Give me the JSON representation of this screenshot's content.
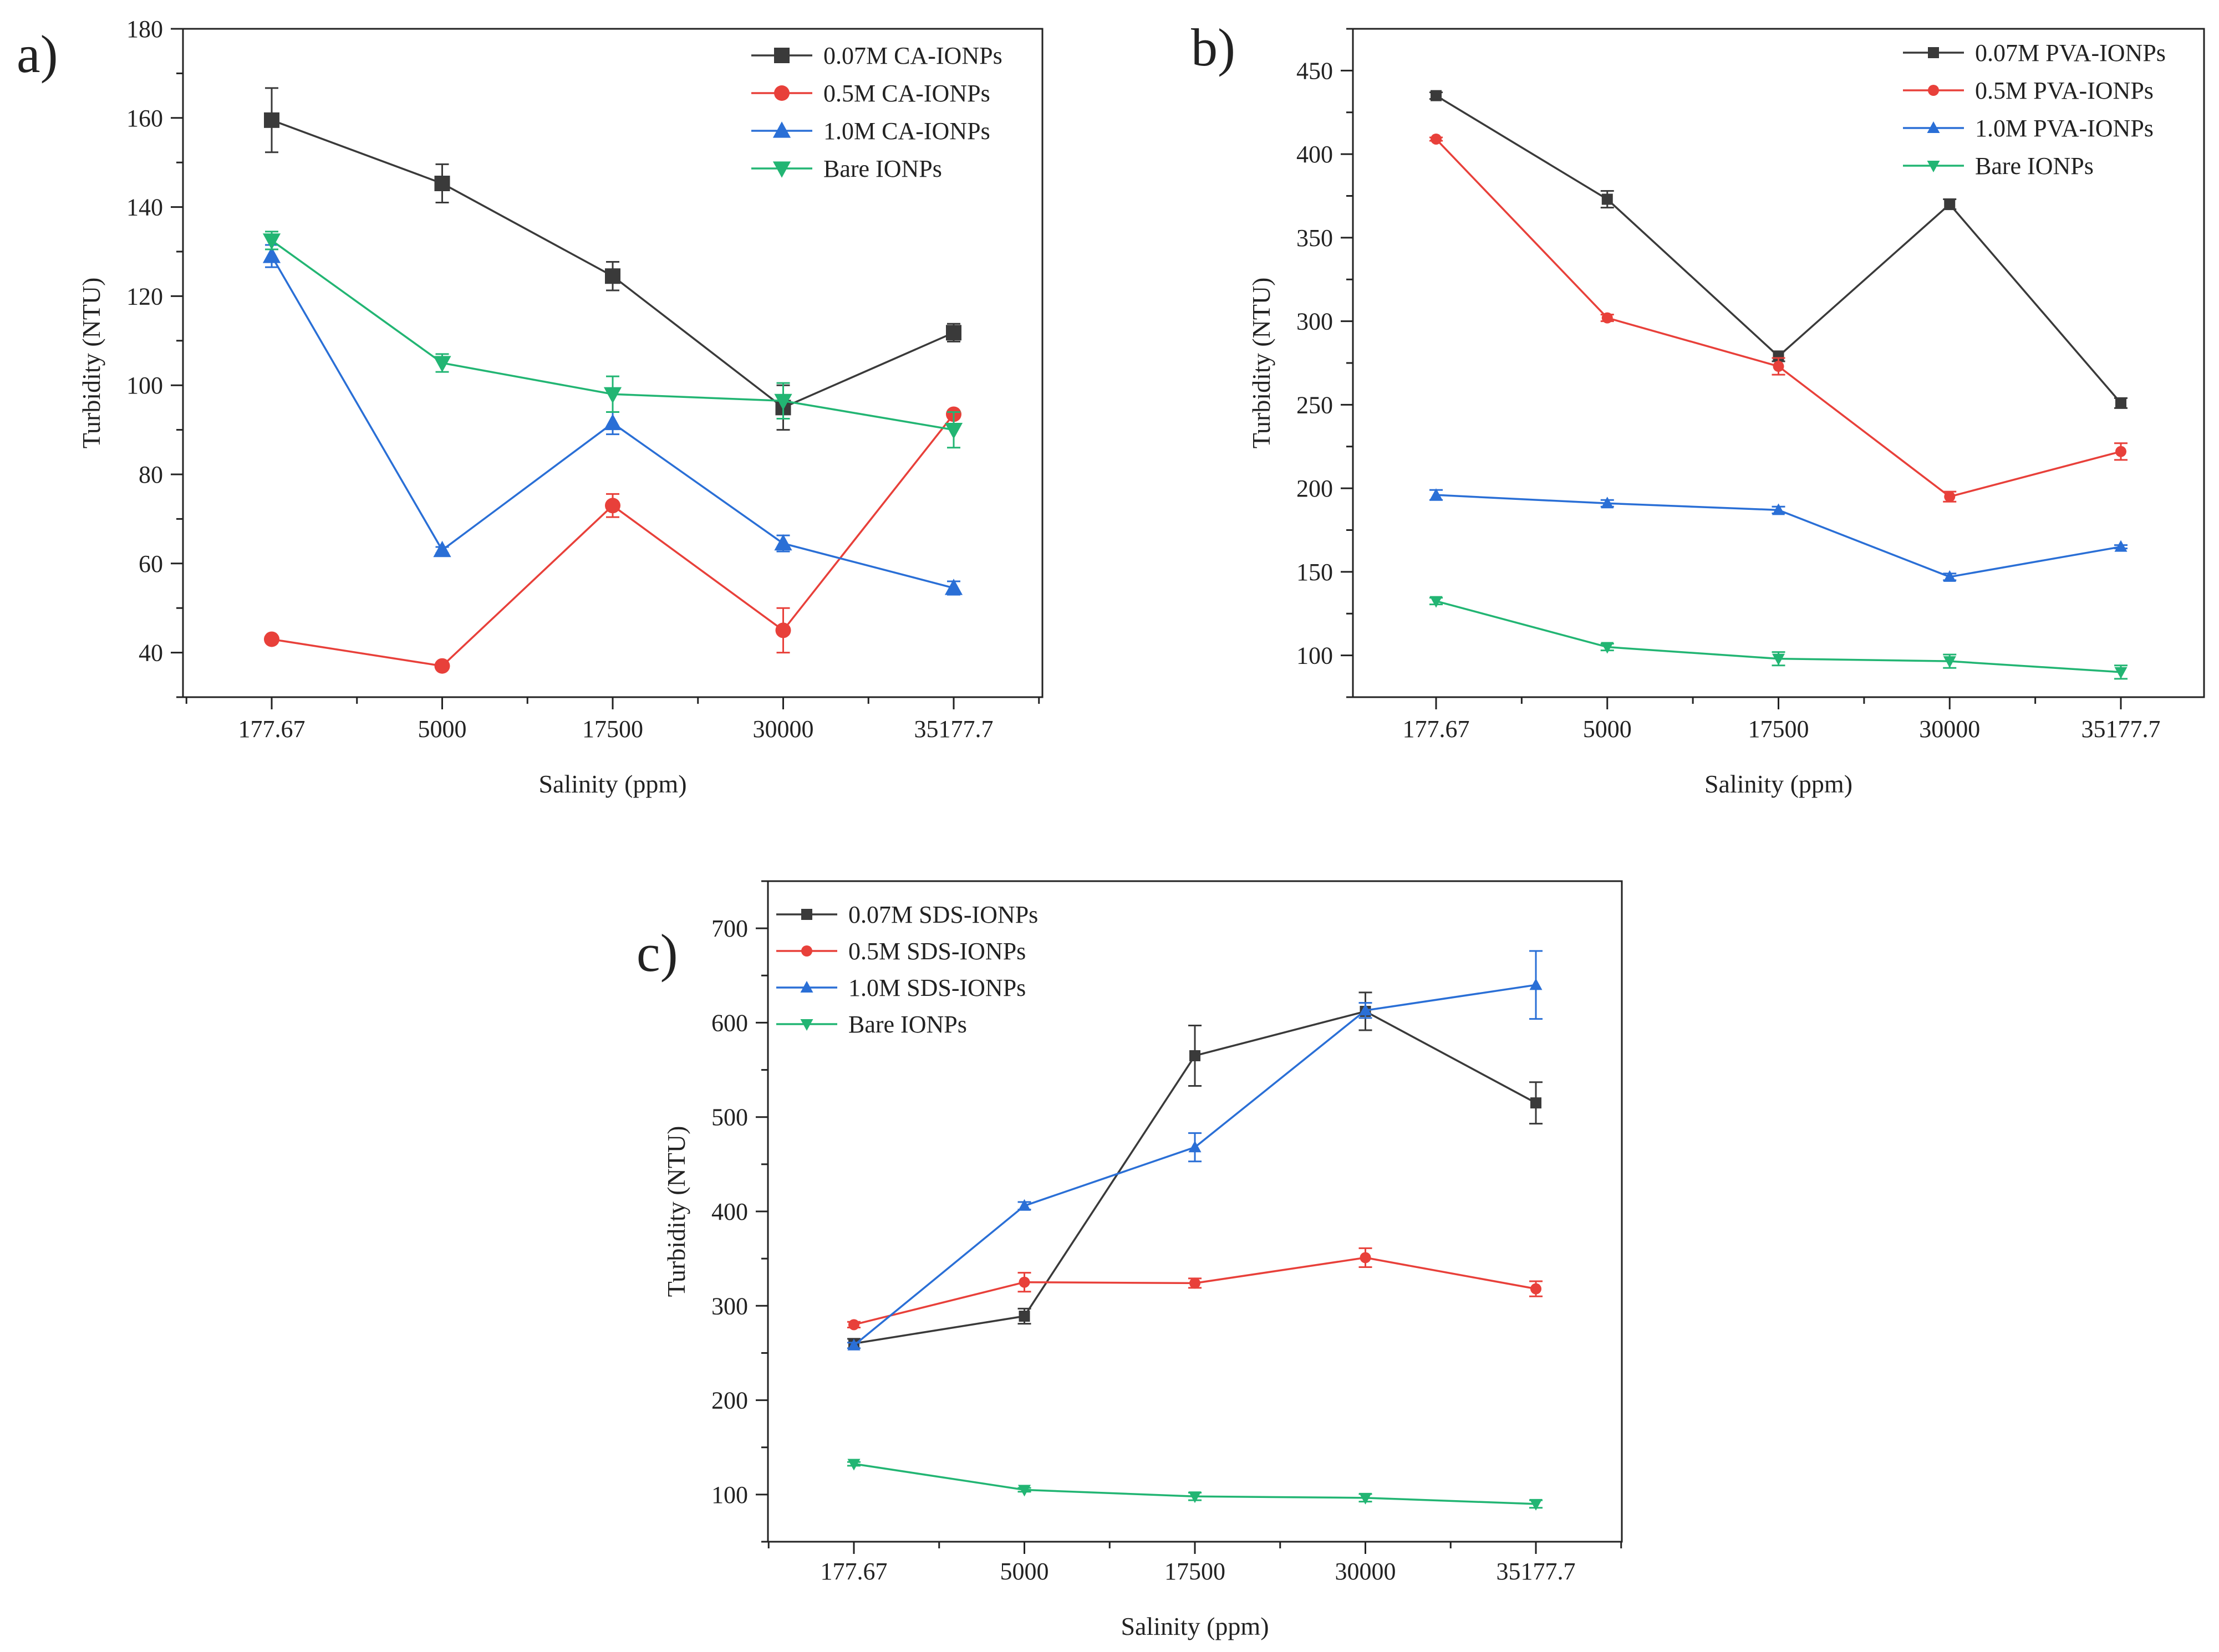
{
  "figure": {
    "panel_labels": [
      "a)",
      "b)",
      "c)"
    ]
  },
  "chart_data": [
    {
      "type": "line",
      "panel": "a)",
      "title": "",
      "xlabel": "Salinity (ppm)",
      "ylabel": "Turbidity (NTU)",
      "categories": [
        "177.67",
        "5000",
        "17500",
        "30000",
        "35177.7"
      ],
      "ylim": [
        30,
        180
      ],
      "yticks": [
        40,
        60,
        80,
        100,
        120,
        140,
        160,
        180
      ],
      "legend_position": "top-right",
      "series": [
        {
          "name": "0.07M CA-IONPs",
          "color": "#3a3a3a",
          "marker": "square",
          "values": [
            159.5,
            145.3,
            124.5,
            95.0,
            111.8
          ],
          "errors": [
            7.2,
            4.3,
            3.2,
            5.0,
            2.0
          ]
        },
        {
          "name": "0.5M CA-IONPs",
          "color": "#e8403a",
          "marker": "circle",
          "values": [
            43.0,
            37.0,
            73.0,
            45.0,
            93.5
          ],
          "errors": [
            0.6,
            0.5,
            2.6,
            5.0,
            0.5
          ]
        },
        {
          "name": "1.0M CA-IONPs",
          "color": "#2a6fd6",
          "marker": "triangle-up",
          "values": [
            129.0,
            63.0,
            91.5,
            64.5,
            54.5
          ],
          "errors": [
            2.5,
            0.7,
            2.5,
            1.8,
            1.5
          ]
        },
        {
          "name": "Bare IONPs",
          "color": "#22b573",
          "marker": "triangle-down",
          "values": [
            132.5,
            105.0,
            98.0,
            96.5,
            90.0
          ],
          "errors": [
            2.0,
            2.0,
            4.0,
            4.0,
            4.0
          ]
        }
      ]
    },
    {
      "type": "line",
      "panel": "b)",
      "title": "",
      "xlabel": "Salinity (ppm)",
      "ylabel": "Turbidity (NTU)",
      "categories": [
        "177.67",
        "5000",
        "17500",
        "30000",
        "35177.7"
      ],
      "ylim": [
        75,
        475
      ],
      "yticks": [
        100,
        150,
        200,
        250,
        300,
        350,
        400,
        450
      ],
      "legend_position": "top-right",
      "series": [
        {
          "name": "0.07M PVA-IONPs",
          "color": "#3a3a3a",
          "marker": "square",
          "values": [
            435.0,
            373.0,
            279.0,
            370.0,
            251.0
          ],
          "errors": [
            2.0,
            5.0,
            3.0,
            3.0,
            3.0
          ]
        },
        {
          "name": "0.5M PVA-IONPs",
          "color": "#e8403a",
          "marker": "circle",
          "values": [
            409.0,
            302.0,
            273.0,
            195.0,
            222.0
          ],
          "errors": [
            1.0,
            2.0,
            5.0,
            3.0,
            5.0
          ]
        },
        {
          "name": "1.0M PVA-IONPs",
          "color": "#2a6fd6",
          "marker": "triangle-up",
          "values": [
            196.0,
            191.0,
            187.0,
            147.0,
            165.0
          ],
          "errors": [
            3.0,
            2.0,
            2.0,
            2.0,
            1.0
          ]
        },
        {
          "name": "Bare IONPs",
          "color": "#22b573",
          "marker": "triangle-down",
          "values": [
            132.5,
            105.0,
            98.0,
            96.5,
            90.0
          ],
          "errors": [
            2.0,
            2.0,
            4.0,
            4.0,
            4.0
          ]
        }
      ]
    },
    {
      "type": "line",
      "panel": "c)",
      "title": "",
      "xlabel": "Salinity (ppm)",
      "ylabel": "Turbidity (NTU)",
      "categories": [
        "177.67",
        "5000",
        "17500",
        "30000",
        "35177.7"
      ],
      "ylim": [
        50,
        750
      ],
      "yticks": [
        100,
        200,
        300,
        400,
        500,
        600,
        700
      ],
      "legend_position": "top-left",
      "series": [
        {
          "name": "0.07M SDS-IONPs",
          "color": "#3a3a3a",
          "marker": "square",
          "values": [
            260.0,
            289.0,
            565.0,
            612.0,
            515.0
          ],
          "errors": [
            5.0,
            8.0,
            32.0,
            20.0,
            22.0
          ]
        },
        {
          "name": "0.5M SDS-IONPs",
          "color": "#e8403a",
          "marker": "circle",
          "values": [
            280.0,
            325.0,
            324.0,
            351.0,
            318.0
          ],
          "errors": [
            3.0,
            10.0,
            5.0,
            10.0,
            8.0
          ]
        },
        {
          "name": "1.0M SDS-IONPs",
          "color": "#2a6fd6",
          "marker": "triangle-up",
          "values": [
            258.0,
            406.0,
            468.0,
            613.0,
            640.0
          ],
          "errors": [
            3.0,
            4.0,
            15.0,
            8.0,
            36.0
          ]
        },
        {
          "name": "Bare IONPs",
          "color": "#22b573",
          "marker": "triangle-down",
          "values": [
            132.5,
            105.0,
            98.0,
            96.5,
            90.0
          ],
          "errors": [
            2.0,
            2.0,
            4.0,
            4.0,
            4.0
          ]
        }
      ]
    }
  ]
}
